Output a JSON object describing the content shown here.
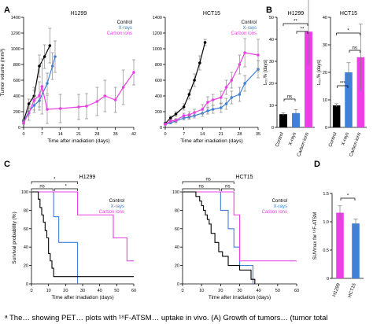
{
  "colors": {
    "control": "#000000",
    "xrays": "#3f80d8",
    "carbon": "#ec3fe6"
  },
  "panel_letters": [
    "A",
    "B",
    "C",
    "D"
  ],
  "caption": "ᵃ The… showing PET… plots with ¹⁸F-ATSM… uptake in vivo. (A) Growth of tumors… (tumor total",
  "chart_data": [
    {
      "panel": "A",
      "type": "line",
      "title": "H1299",
      "xlabel": "Time after irradiation (days)",
      "ylabel": "Tumor volume (mm³)",
      "xlim": [
        0,
        42
      ],
      "ylim": [
        0,
        1400
      ],
      "xticks": [
        0,
        7,
        14,
        21,
        28,
        35,
        42
      ],
      "yticks": [
        0,
        200,
        400,
        600,
        800,
        1000,
        1200,
        1400
      ],
      "legend": [
        "Control",
        "X-rays",
        "Carbon ions"
      ],
      "series": [
        {
          "name": "Control",
          "x": [
            0,
            2,
            4,
            6,
            8,
            10
          ],
          "y": [
            80,
            300,
            400,
            780,
            900,
            1040
          ],
          "err": [
            25,
            60,
            70,
            140,
            150,
            220
          ]
        },
        {
          "name": "X-rays",
          "x": [
            0,
            2,
            4,
            6,
            9,
            11,
            12
          ],
          "y": [
            70,
            200,
            280,
            340,
            560,
            780,
            900
          ],
          "err": [
            25,
            50,
            60,
            80,
            130,
            170,
            200
          ]
        },
        {
          "name": "Carbon ions",
          "x": [
            0,
            2,
            4,
            6,
            7,
            9,
            14,
            21,
            24,
            28,
            31,
            35,
            38,
            42
          ],
          "y": [
            60,
            180,
            350,
            400,
            520,
            230,
            240,
            260,
            270,
            330,
            400,
            350,
            510,
            700
          ],
          "err": [
            20,
            90,
            160,
            180,
            350,
            180,
            180,
            160,
            160,
            180,
            200,
            160,
            220,
            160
          ]
        }
      ]
    },
    {
      "panel": "A",
      "type": "line",
      "title": "HCT15",
      "xlabel": "Time after irradiation (days)",
      "xlim": [
        0,
        35
      ],
      "ylim": [
        0,
        1400
      ],
      "xticks": [
        0,
        7,
        14,
        21,
        28,
        35
      ],
      "yticks": [
        0,
        200,
        400,
        600,
        800,
        1000,
        1200,
        1400
      ],
      "legend": [
        "Control",
        "X-rays",
        "Carbon ions"
      ],
      "series": [
        {
          "name": "Control",
          "x": [
            0,
            2,
            4,
            7,
            9,
            11,
            13,
            15
          ],
          "y": [
            50,
            120,
            170,
            260,
            420,
            600,
            820,
            1080
          ],
          "err": [
            15,
            25,
            30,
            40,
            60,
            80,
            90,
            40
          ]
        },
        {
          "name": "X-rays",
          "x": [
            0,
            2,
            4,
            7,
            9,
            11,
            14,
            16,
            18,
            21,
            23,
            25,
            28,
            30,
            35
          ],
          "y": [
            40,
            60,
            80,
            120,
            130,
            150,
            180,
            210,
            230,
            250,
            300,
            380,
            420,
            560,
            740
          ],
          "err": [
            10,
            15,
            20,
            25,
            25,
            30,
            40,
            40,
            50,
            60,
            70,
            80,
            90,
            100,
            110
          ]
        },
        {
          "name": "Carbon ions",
          "x": [
            0,
            2,
            4,
            7,
            9,
            11,
            14,
            16,
            18,
            21,
            23,
            25,
            28,
            30,
            35
          ],
          "y": [
            40,
            80,
            90,
            150,
            160,
            190,
            230,
            320,
            350,
            380,
            510,
            600,
            800,
            950,
            920
          ],
          "err": [
            10,
            20,
            20,
            30,
            40,
            40,
            60,
            70,
            70,
            80,
            90,
            100,
            120,
            180,
            200
          ]
        }
      ]
    },
    {
      "panel": "B",
      "type": "bar",
      "title": "H1299",
      "ylabel": "t₄₀₀% (days)",
      "ylim": [
        0,
        50
      ],
      "yticks": [
        0,
        10,
        20,
        30,
        40,
        50
      ],
      "categories": [
        "Control",
        "X-rays",
        "Carbon ions"
      ],
      "values": [
        6,
        6.5,
        43.5
      ],
      "errors": [
        0.6,
        1.5,
        15
      ],
      "significance": [
        {
          "from": 0,
          "to": 1,
          "label": "ns"
        },
        {
          "from": 1,
          "to": 2,
          "label": "**"
        },
        {
          "from": 0,
          "to": 2,
          "label": "**"
        }
      ]
    },
    {
      "panel": "B",
      "type": "bar",
      "title": "HCT15",
      "ylabel": "t₄₀₀% (days)",
      "ylim": [
        0,
        40
      ],
      "yticks": [
        0,
        10,
        20,
        30,
        40
      ],
      "categories": [
        "Control",
        "X-rays",
        "Carbon ions"
      ],
      "values": [
        8,
        20,
        25.5
      ],
      "errors": [
        0.6,
        3.5,
        12
      ],
      "significance": [
        {
          "from": 0,
          "to": 1,
          "label": "***"
        },
        {
          "from": 1,
          "to": 2,
          "label": "ns"
        },
        {
          "from": 0,
          "to": 2,
          "label": "*"
        }
      ]
    },
    {
      "panel": "C",
      "type": "line",
      "title": "H1299",
      "xlabel": "Time after irradiation (days)",
      "ylabel": "Survival probability (%)",
      "xlim": [
        0,
        60
      ],
      "ylim": [
        0,
        100
      ],
      "xticks": [
        0,
        10,
        20,
        30,
        40,
        50,
        60
      ],
      "yticks": [
        0,
        20,
        40,
        60,
        80,
        100
      ],
      "legend": [
        "Control",
        "X-rays",
        "Carbon ions"
      ],
      "significance": [
        {
          "from": 0,
          "to": 13,
          "label": "ns"
        },
        {
          "from": 13,
          "to": 27,
          "label": "*"
        },
        {
          "from": 0,
          "to": 27,
          "label": "*"
        }
      ],
      "series": [
        {
          "name": "Control",
          "x": [
            0,
            4,
            5,
            6,
            7,
            8,
            9,
            10,
            11,
            12,
            13,
            27,
            60
          ],
          "y": [
            100,
            92,
            83,
            75,
            67,
            58,
            50,
            33,
            25,
            17,
            8,
            8,
            8
          ]
        },
        {
          "name": "X-rays",
          "x": [
            0,
            13,
            16,
            27
          ],
          "y": [
            100,
            73,
            45,
            0
          ]
        },
        {
          "name": "Carbon ions",
          "x": [
            0,
            27,
            48,
            56,
            60
          ],
          "y": [
            100,
            75,
            50,
            25,
            25
          ]
        }
      ]
    },
    {
      "panel": "C",
      "type": "line",
      "title": "HCT15",
      "xlabel": "Time after irradiation (days)",
      "xlim": [
        0,
        60
      ],
      "ylim": [
        0,
        100
      ],
      "xticks": [
        0,
        10,
        20,
        30,
        40,
        50,
        60
      ],
      "yticks": [
        0,
        20,
        40,
        60,
        80,
        100
      ],
      "legend": [
        "Control",
        "X-rays",
        "Carbon ions"
      ],
      "significance": [
        {
          "from": 0,
          "to": 20,
          "label": "ns"
        },
        {
          "from": 20,
          "to": 27,
          "label": "ns"
        },
        {
          "from": 0,
          "to": 27,
          "label": "ns"
        }
      ],
      "series": [
        {
          "name": "Control",
          "x": [
            0,
            7,
            9,
            10,
            11,
            12,
            13,
            14,
            15,
            17,
            19,
            21,
            24,
            30,
            36,
            38
          ],
          "y": [
            100,
            95,
            90,
            85,
            80,
            75,
            70,
            65,
            55,
            45,
            35,
            30,
            20,
            15,
            5,
            0
          ]
        },
        {
          "name": "X-rays",
          "x": [
            0,
            20,
            24,
            27,
            30,
            37
          ],
          "y": [
            100,
            80,
            60,
            40,
            20,
            0
          ]
        },
        {
          "name": "Carbon ions",
          "x": [
            0,
            24,
            27,
            30,
            60
          ],
          "y": [
            100,
            100,
            75,
            25,
            25
          ]
        }
      ]
    },
    {
      "panel": "D",
      "type": "bar",
      "ylabel": "SUVmax for ¹⁸F-ATSM",
      "ylim": [
        0,
        1.5
      ],
      "yticks": [
        0,
        0.5,
        1.0,
        1.5
      ],
      "categories": [
        "H1299",
        "HCT15"
      ],
      "values": [
        1.16,
        0.97
      ],
      "errors": [
        0.12,
        0.08
      ],
      "significance": [
        {
          "from": 0,
          "to": 1,
          "label": "*"
        }
      ]
    }
  ]
}
